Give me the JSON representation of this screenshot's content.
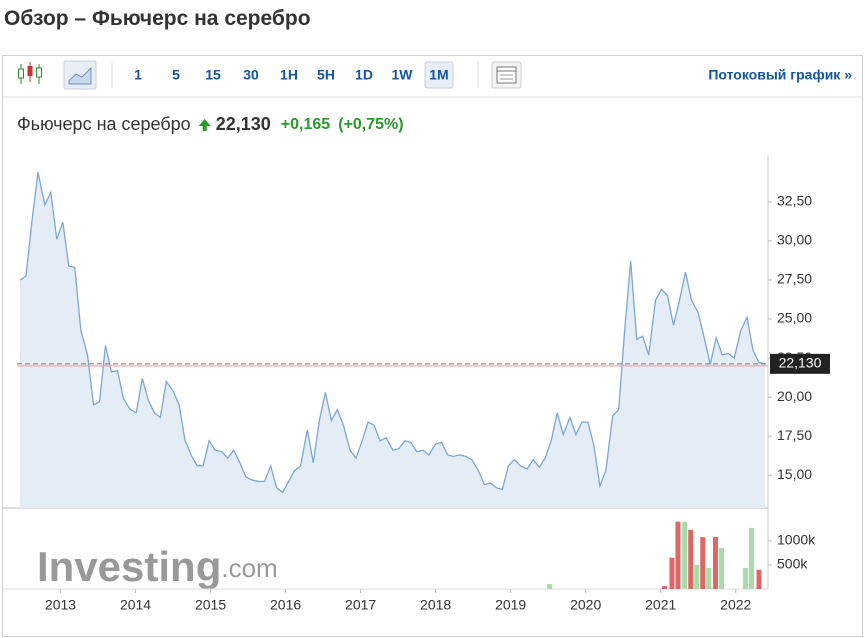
{
  "header": {
    "title": "Обзор – Фьючерс на серебро"
  },
  "toolbar": {
    "intervals": [
      "1",
      "5",
      "15",
      "30",
      "1H",
      "5H",
      "1D",
      "1W",
      "1M"
    ],
    "active": "1M",
    "streaming_link": "Потоковый график »"
  },
  "quote": {
    "name": "Фьючерс на серебро",
    "price": "22,130",
    "change": "+0,165",
    "change_percent": "(+0,75%)"
  },
  "chart_data": [
    {
      "type": "line",
      "color": "#7ba7d1",
      "fill": "#e4edf6",
      "grid": false,
      "x": [
        2012.46,
        2012.54,
        2012.62,
        2012.7,
        2012.79,
        2012.87,
        2012.95,
        2013.03,
        2013.11,
        2013.19,
        2013.27,
        2013.36,
        2013.44,
        2013.52,
        2013.6,
        2013.68,
        2013.76,
        2013.84,
        2013.93,
        2014.01,
        2014.09,
        2014.17,
        2014.25,
        2014.33,
        2014.41,
        2014.5,
        2014.58,
        2014.66,
        2014.74,
        2014.82,
        2014.9,
        2014.98,
        2015.06,
        2015.15,
        2015.23,
        2015.31,
        2015.39,
        2015.47,
        2015.55,
        2015.63,
        2015.72,
        2015.8,
        2015.88,
        2015.96,
        2016.04,
        2016.12,
        2016.2,
        2016.29,
        2016.37,
        2016.45,
        2016.53,
        2016.61,
        2016.69,
        2016.77,
        2016.86,
        2016.94,
        2017.02,
        2017.1,
        2017.18,
        2017.26,
        2017.34,
        2017.43,
        2017.51,
        2017.59,
        2017.67,
        2017.75,
        2017.83,
        2017.91,
        2018.0,
        2018.08,
        2018.16,
        2018.24,
        2018.32,
        2018.4,
        2018.48,
        2018.57,
        2018.65,
        2018.73,
        2018.81,
        2018.89,
        2018.97,
        2019.05,
        2019.13,
        2019.22,
        2019.3,
        2019.38,
        2019.46,
        2019.54,
        2019.62,
        2019.7,
        2019.79,
        2019.87,
        2019.95,
        2020.03,
        2020.11,
        2020.19,
        2020.27,
        2020.36,
        2020.44,
        2020.52,
        2020.6,
        2020.68,
        2020.76,
        2020.84,
        2020.93,
        2021.01,
        2021.09,
        2021.17,
        2021.25,
        2021.33,
        2021.41,
        2021.5,
        2021.58,
        2021.66,
        2021.74,
        2021.82,
        2021.9,
        2021.98,
        2022.07,
        2022.15,
        2022.23,
        2022.31,
        2022.39
      ],
      "values": [
        27.5,
        27.75,
        31.3,
        34.4,
        32.3,
        33.1,
        30.1,
        31.2,
        28.4,
        28.3,
        24.3,
        22.7,
        19.5,
        19.7,
        23.3,
        21.6,
        21.7,
        19.9,
        19.2,
        19.0,
        21.2,
        19.8,
        19.0,
        18.7,
        21.0,
        20.4,
        19.5,
        17.2,
        16.3,
        15.6,
        15.6,
        17.2,
        16.6,
        16.5,
        16.1,
        16.6,
        15.8,
        14.9,
        14.7,
        14.6,
        14.6,
        15.6,
        14.2,
        13.9,
        14.6,
        15.3,
        15.6,
        17.9,
        15.8,
        18.5,
        20.3,
        18.5,
        19.2,
        18.2,
        16.6,
        16.1,
        17.2,
        18.4,
        18.2,
        17.2,
        17.4,
        16.6,
        16.7,
        17.2,
        17.1,
        16.5,
        16.6,
        16.3,
        17.0,
        17.1,
        16.3,
        16.2,
        16.3,
        16.2,
        16.0,
        15.3,
        14.4,
        14.5,
        14.2,
        14.1,
        15.6,
        16.0,
        15.6,
        15.4,
        16.0,
        15.5,
        16.1,
        17.2,
        19.0,
        17.6,
        18.7,
        17.6,
        18.4,
        18.4,
        16.9,
        14.3,
        15.3,
        18.8,
        19.2,
        24.3,
        28.7,
        23.7,
        23.9,
        22.7,
        26.2,
        26.9,
        26.5,
        24.6,
        26.2,
        28.0,
        26.2,
        25.4,
        23.8,
        22.1,
        23.8,
        22.7,
        22.8,
        22.5,
        24.3,
        25.1,
        23.0,
        22.2,
        22.13
      ],
      "xlim": [
        2012.42,
        2022.43
      ],
      "xticks": [
        2013,
        2014,
        2015,
        2016,
        2017,
        2018,
        2019,
        2020,
        2021,
        2022
      ],
      "ylim": [
        12.9,
        35.5
      ],
      "yticks": [
        {
          "value": 15,
          "label": "15,00"
        },
        {
          "value": 17.5,
          "label": "17,50"
        },
        {
          "value": 20,
          "label": "20,00"
        },
        {
          "value": 22.5,
          "label": "22,50"
        },
        {
          "value": 25,
          "label": "25,00"
        },
        {
          "value": 27.5,
          "label": "27,50"
        },
        {
          "value": 30,
          "label": "30,00"
        },
        {
          "value": 32.5,
          "label": "32,50"
        }
      ],
      "reference_line": {
        "value": 22.13,
        "label": "22,130"
      },
      "watermark": {
        "brand": "Investing",
        "suffix": ".com"
      }
    },
    {
      "type": "bar",
      "x": [
        2019.52,
        2021.05,
        2021.15,
        2021.23,
        2021.32,
        2021.4,
        2021.48,
        2021.56,
        2021.64,
        2021.73,
        2021.81,
        2022.13,
        2022.21,
        2022.31
      ],
      "values": [
        100000,
        60000,
        650000,
        1400000,
        1400000,
        1230000,
        500000,
        1080000,
        440000,
        1080000,
        850000,
        440000,
        1270000,
        400000
      ],
      "colors": [
        "#a8dca8",
        "#e06666",
        "#e06666",
        "#e06666",
        "#a8dca8",
        "#e06666",
        "#a8dca8",
        "#e06666",
        "#a8dca8",
        "#e06666",
        "#a8dca8",
        "#a8dca8",
        "#a8dca8",
        "#e06666"
      ],
      "xlim": [
        2012.42,
        2022.43
      ],
      "ylim": [
        0,
        1600000
      ],
      "yticks": [
        {
          "value": 500000,
          "label": "500k"
        },
        {
          "value": 1000000,
          "label": "1000k"
        }
      ]
    }
  ]
}
